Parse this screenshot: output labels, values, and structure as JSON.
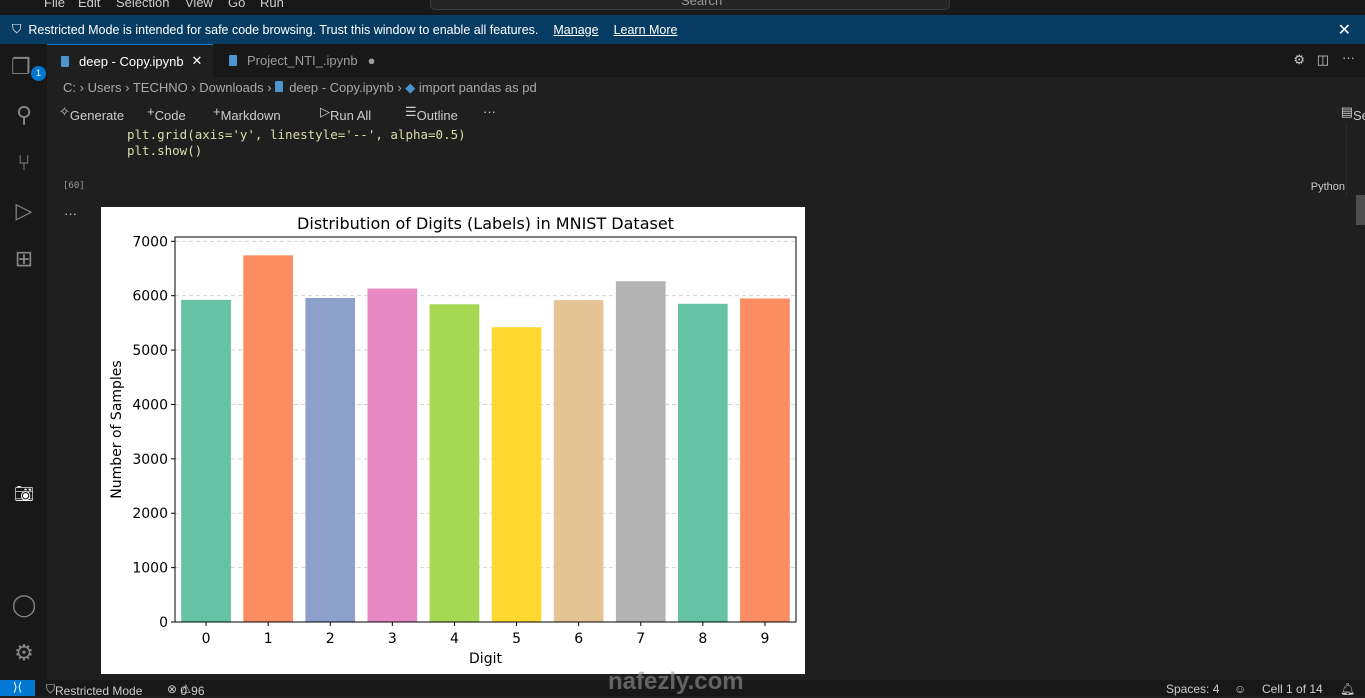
{
  "menu": [
    "File",
    "Edit",
    "Selection",
    "View",
    "Go",
    "Run"
  ],
  "search_placeholder": "Search",
  "banner": {
    "text": "Restricted Mode is intended for safe code browsing. Trust this window to enable all features.",
    "manage": "Manage",
    "learn_more": "Learn More"
  },
  "activity_badge": "1",
  "tabs": [
    {
      "label": "deep - Copy.ipynb",
      "active": true
    },
    {
      "label": "Project_NTI_.ipynb",
      "modified": true
    }
  ],
  "breadcrumb": [
    "C:",
    "Users",
    "TECHNO",
    "Downloads",
    "deep - Copy.ipynb",
    "import pandas as pd"
  ],
  "toolbar": {
    "generate": "Generate",
    "code": "Code",
    "markdown": "Markdown",
    "run_all": "Run All",
    "outline": "Outline",
    "more": "···",
    "select_kernel": "Select Kernel"
  },
  "cell": {
    "line1": "plt.grid(axis='y', linestyle='--', alpha=0.5)",
    "line2": "plt.show()",
    "exec_count": "[60]",
    "language": "Python"
  },
  "chart_data": {
    "type": "bar",
    "title": "Distribution of Digits (Labels) in MNIST Dataset",
    "xlabel": "Digit",
    "ylabel": "Number of Samples",
    "categories": [
      "0",
      "1",
      "2",
      "3",
      "4",
      "5",
      "6",
      "7",
      "8",
      "9"
    ],
    "values": [
      5923,
      6742,
      5958,
      6131,
      5842,
      5421,
      5918,
      6265,
      5851,
      5949
    ],
    "colors": [
      "#66c2a5",
      "#fc8d62",
      "#8da0cb",
      "#e78ac3",
      "#a6d854",
      "#ffd92f",
      "#e5c494",
      "#b3b3b3",
      "#66c2a5",
      "#fc8d62"
    ],
    "yticks": [
      0,
      1000,
      2000,
      3000,
      4000,
      5000,
      6000,
      7000
    ],
    "ylim": [
      0,
      7079
    ],
    "grid": "y dashed"
  },
  "status": {
    "mode": "Restricted Mode",
    "errors": "0",
    "warnings": "96",
    "spaces": "Spaces: 4",
    "cell": "Cell 1 of 14"
  },
  "watermark": "nafezly.com"
}
